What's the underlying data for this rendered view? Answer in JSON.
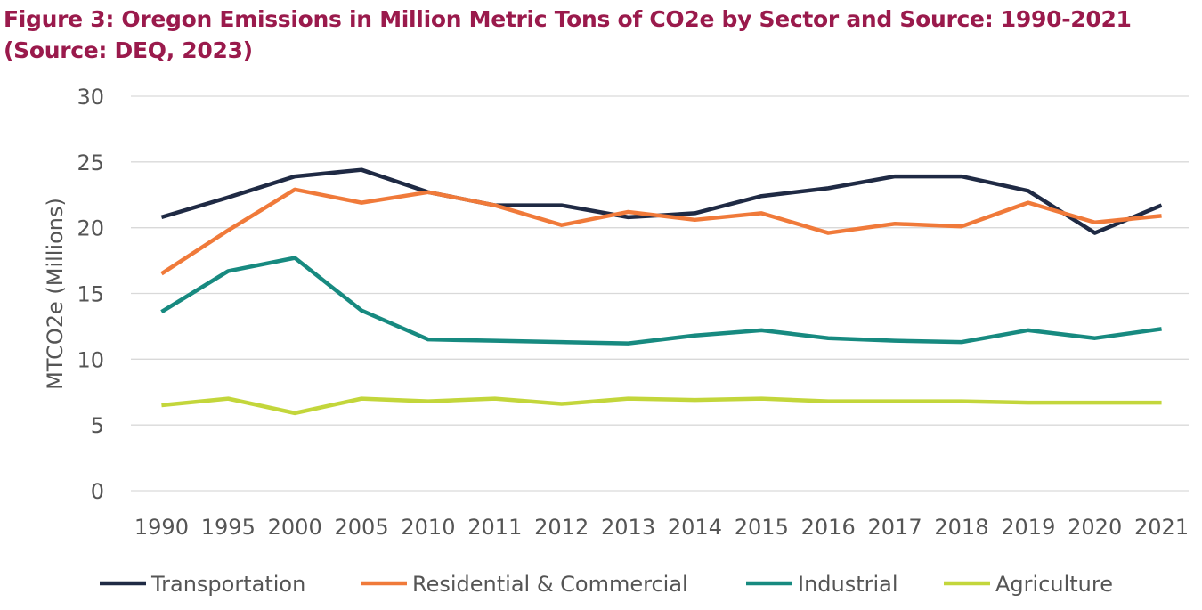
{
  "chart_data": {
    "type": "line",
    "title": "Figure 3: Oregon Emissions in Million Metric Tons of CO2e by Sector and Source: 1990-2021 (Source: DEQ, 2023)",
    "xlabel": "",
    "ylabel": "MTCO2e (Millions)",
    "ylim": [
      0,
      30
    ],
    "yticks": [
      0,
      5,
      10,
      15,
      20,
      25,
      30
    ],
    "grid": true,
    "legend": "bottom",
    "categories": [
      "1990",
      "1995",
      "2000",
      "2005",
      "2010",
      "2011",
      "2012",
      "2013",
      "2014",
      "2015",
      "2016",
      "2017",
      "2018",
      "2019",
      "2020",
      "2021"
    ],
    "series": [
      {
        "name": "Transportation",
        "color": "#1f2a44",
        "values": [
          20.8,
          22.3,
          23.9,
          24.4,
          22.7,
          21.7,
          21.7,
          20.8,
          21.1,
          22.4,
          23.0,
          23.9,
          23.9,
          22.8,
          19.6,
          21.7
        ]
      },
      {
        "name": "Residential & Commercial",
        "color": "#f07a3a",
        "values": [
          16.5,
          19.8,
          22.9,
          21.9,
          22.7,
          21.7,
          20.2,
          21.2,
          20.6,
          21.1,
          19.6,
          20.3,
          20.1,
          21.9,
          20.4,
          20.9
        ]
      },
      {
        "name": "Industrial",
        "color": "#178a80",
        "values": [
          13.6,
          16.7,
          17.7,
          13.7,
          11.5,
          11.4,
          11.3,
          11.2,
          11.8,
          12.2,
          11.6,
          11.4,
          11.3,
          12.2,
          11.6,
          12.3
        ]
      },
      {
        "name": "Agriculture",
        "color": "#c3d63b",
        "values": [
          6.5,
          7.0,
          5.9,
          7.0,
          6.8,
          7.0,
          6.6,
          7.0,
          6.9,
          7.0,
          6.8,
          6.8,
          6.8,
          6.7,
          6.7,
          6.7
        ]
      }
    ]
  }
}
